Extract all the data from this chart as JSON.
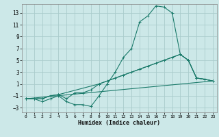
{
  "xlabel": "Humidex (Indice chaleur)",
  "bg_color": "#cce8e8",
  "grid_color": "#aacccc",
  "line_color": "#1a7a6a",
  "xlim": [
    -0.5,
    23.5
  ],
  "ylim": [
    -3.8,
    14.5
  ],
  "xticks": [
    0,
    1,
    2,
    3,
    4,
    5,
    6,
    7,
    8,
    9,
    10,
    11,
    12,
    13,
    14,
    15,
    16,
    17,
    18,
    19,
    20,
    21,
    22,
    23
  ],
  "yticks": [
    -3,
    -1,
    1,
    3,
    5,
    7,
    9,
    11,
    13
  ],
  "line1_x": [
    0,
    1,
    2,
    3,
    4,
    5,
    6,
    7,
    8,
    9,
    10,
    11,
    12,
    13,
    14,
    15,
    16,
    17,
    18,
    19,
    20,
    21,
    22,
    23
  ],
  "line1_y": [
    -1.5,
    -1.5,
    -2.0,
    -1.5,
    -1.0,
    -2.0,
    -2.5,
    -2.5,
    -2.8,
    -1.0,
    1.0,
    3.0,
    5.5,
    7.0,
    11.5,
    12.5,
    14.2,
    14.0,
    13.0,
    6.0,
    5.0,
    2.0,
    1.8,
    1.5
  ],
  "line2_x": [
    0,
    1,
    2,
    3,
    4,
    5,
    6,
    7,
    8,
    9,
    10,
    11,
    12,
    13,
    14,
    15,
    16,
    17,
    18,
    19,
    20,
    21,
    22,
    23
  ],
  "line2_y": [
    -1.5,
    -1.5,
    -1.5,
    -1.0,
    -0.8,
    -1.5,
    -0.5,
    -0.5,
    0.0,
    1.0,
    1.5,
    2.0,
    2.5,
    3.0,
    3.5,
    4.0,
    4.5,
    5.0,
    5.5,
    6.0,
    5.0,
    2.0,
    1.8,
    1.5
  ],
  "line3_x": [
    0,
    1,
    2,
    3,
    4,
    9,
    14,
    19,
    20,
    21,
    22,
    23
  ],
  "line3_y": [
    -1.5,
    -1.5,
    -1.5,
    -1.0,
    -0.8,
    1.0,
    3.5,
    6.0,
    5.0,
    2.0,
    1.8,
    1.5
  ],
  "line4_x": [
    0,
    23
  ],
  "line4_y": [
    -1.5,
    1.5
  ]
}
